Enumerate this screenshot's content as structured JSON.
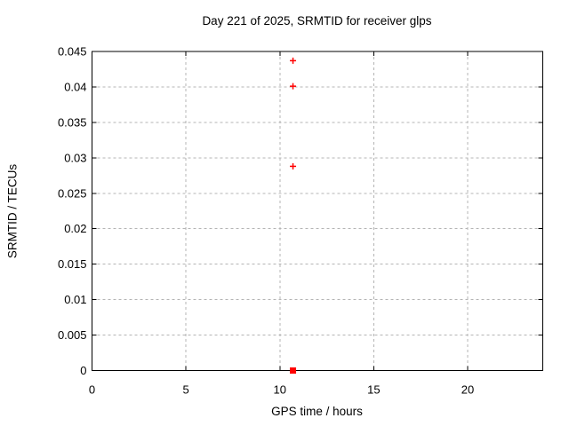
{
  "page": {
    "background_color": "#ffffff",
    "text_color": "#000000"
  },
  "chart_data": {
    "type": "scatter",
    "title": "Day 221 of 2025, SRMTID for receiver glps",
    "xlabel": "GPS time / hours",
    "ylabel": "SRMTID / TECUs",
    "xlim": [
      0,
      24
    ],
    "ylim": [
      0,
      0.045
    ],
    "xticks": [
      {
        "value": 0,
        "label": "0"
      },
      {
        "value": 5,
        "label": "5"
      },
      {
        "value": 10,
        "label": "10"
      },
      {
        "value": 15,
        "label": "15"
      },
      {
        "value": 20,
        "label": "20"
      }
    ],
    "yticks": [
      {
        "value": 0,
        "label": "0"
      },
      {
        "value": 0.005,
        "label": "0.005"
      },
      {
        "value": 0.01,
        "label": "0.01"
      },
      {
        "value": 0.015,
        "label": "0.015"
      },
      {
        "value": 0.02,
        "label": "0.02"
      },
      {
        "value": 0.025,
        "label": "0.025"
      },
      {
        "value": 0.03,
        "label": "0.03"
      },
      {
        "value": 0.035,
        "label": "0.035"
      },
      {
        "value": 0.04,
        "label": "0.04"
      },
      {
        "value": 0.045,
        "label": "0.045"
      }
    ],
    "grid": true,
    "grid_color": "#b4b4b4",
    "axis_color": "#000000",
    "legend": "none",
    "series": [
      {
        "name": "plus-markers",
        "marker": "plus",
        "color": "#ff0000",
        "points": [
          {
            "x": 10.7,
            "y": 0.0437
          },
          {
            "x": 10.7,
            "y": 0.0401
          },
          {
            "x": 10.7,
            "y": 0.0288
          }
        ]
      },
      {
        "name": "square-markers",
        "marker": "filled-square",
        "color": "#ff0000",
        "points": [
          {
            "x": 10.7,
            "y": 0.0
          }
        ]
      }
    ]
  }
}
